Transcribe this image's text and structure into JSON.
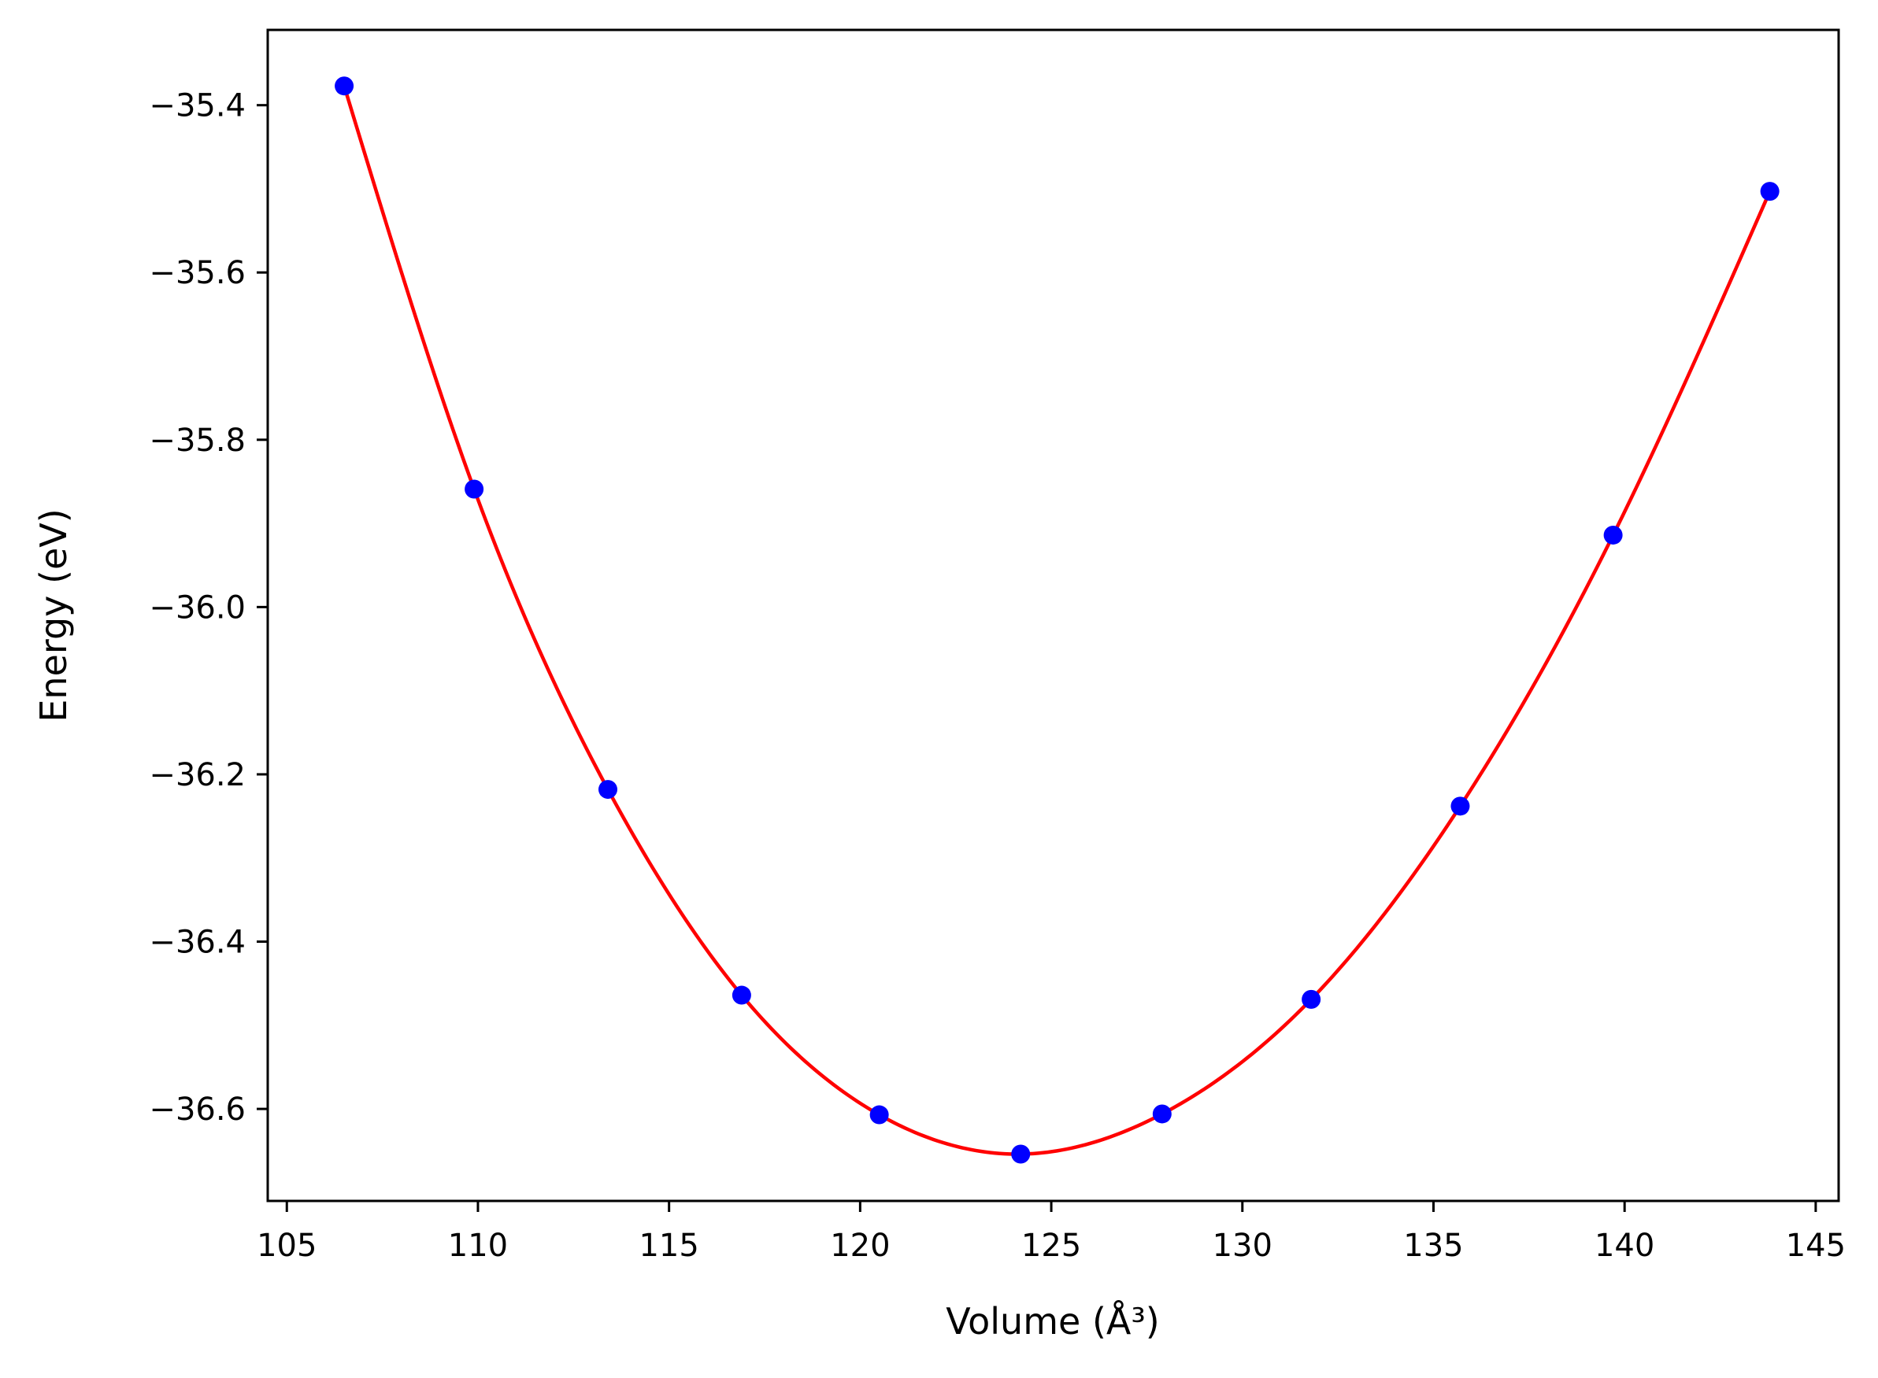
{
  "chart_data": {
    "type": "line",
    "xlabel": "Volume (Å³)",
    "ylabel": "Energy (eV)",
    "xlim": [
      104.5,
      145.6
    ],
    "ylim": [
      -36.71,
      -35.31
    ],
    "x_ticks": [
      105,
      110,
      115,
      120,
      125,
      130,
      135,
      140,
      145
    ],
    "x_tick_labels": [
      "105",
      "110",
      "115",
      "120",
      "125",
      "130",
      "135",
      "140",
      "145"
    ],
    "y_ticks": [
      -35.4,
      -35.6,
      -35.8,
      -36.0,
      -36.2,
      -36.4,
      -36.6
    ],
    "y_tick_labels": [
      "−35.4",
      "−35.6",
      "−35.8",
      "−36.0",
      "−36.2",
      "−36.4",
      "−36.6"
    ],
    "grid": false,
    "series": [
      {
        "kind": "markers",
        "color": "#0000ff",
        "points": [
          [
            106.5,
            -35.377
          ],
          [
            109.9,
            -35.859
          ],
          [
            113.4,
            -36.218
          ],
          [
            116.9,
            -36.464
          ],
          [
            120.5,
            -36.607
          ],
          [
            124.2,
            -36.654
          ],
          [
            127.9,
            -36.606
          ],
          [
            131.8,
            -36.469
          ],
          [
            135.7,
            -36.238
          ],
          [
            139.7,
            -35.914
          ],
          [
            143.8,
            -35.503
          ]
        ]
      },
      {
        "kind": "fit-curve",
        "color": "#ff0000",
        "x_range": [
          106.5,
          143.8
        ],
        "points": [
          [
            106.5,
            -35.377
          ],
          [
            109.9,
            -35.859
          ],
          [
            113.4,
            -36.218
          ],
          [
            116.9,
            -36.464
          ],
          [
            120.5,
            -36.607
          ],
          [
            124.2,
            -36.654
          ],
          [
            127.9,
            -36.606
          ],
          [
            131.8,
            -36.469
          ],
          [
            135.7,
            -36.238
          ],
          [
            139.7,
            -35.914
          ],
          [
            143.8,
            -35.503
          ]
        ]
      }
    ]
  }
}
